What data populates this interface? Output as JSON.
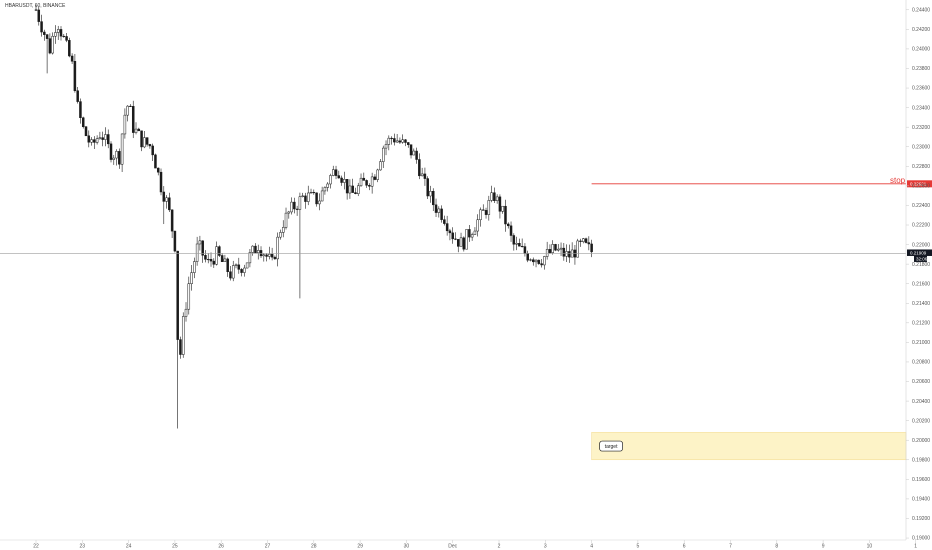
{
  "symbol_label": "HBARUSDT, 60, BINANCE",
  "colors": {
    "background": "#ffffff",
    "candle": "#1a1a1a",
    "stop_line": "#e53935",
    "price_line": "#9e9e9e",
    "target_zone": "#fdf3c7",
    "target_border": "#f2d98a",
    "axis": "#555555",
    "price_tag": "#131722"
  },
  "chart_data": {
    "type": "candlestick",
    "title": "",
    "y_range": [
      0.1898,
      0.245
    ],
    "y_ticks": [
      "0.24400",
      "0.24200",
      "0.24000",
      "0.23800",
      "0.23600",
      "0.23400",
      "0.23200",
      "0.23000",
      "0.22800",
      "0.22600",
      "0.22400",
      "0.22200",
      "0.22000",
      "0.21800",
      "0.21600",
      "0.21400",
      "0.21200",
      "0.21000",
      "0.20800",
      "0.20600",
      "0.20400",
      "0.20200",
      "0.20000",
      "0.19800",
      "0.19600",
      "0.19400",
      "0.19200",
      "0.19000"
    ],
    "y_tick_values": [
      0.244,
      0.242,
      0.24,
      0.238,
      0.236,
      0.234,
      0.232,
      0.23,
      0.228,
      0.226,
      0.224,
      0.222,
      0.22,
      0.218,
      0.216,
      0.214,
      0.212,
      0.21,
      0.208,
      0.206,
      0.204,
      0.202,
      0.2,
      0.198,
      0.196,
      0.194,
      0.192,
      0.19
    ],
    "x_ticks": [
      "22",
      "23",
      "24",
      "25",
      "26",
      "27",
      "28",
      "29",
      "30",
      "Dec",
      "2",
      "3",
      "4",
      "5",
      "6",
      "7",
      "8",
      "9",
      "10",
      "1"
    ],
    "x_tick_index": [
      0,
      1,
      2,
      3,
      4,
      5,
      6,
      7,
      8,
      9,
      10,
      11,
      12,
      13,
      14,
      15,
      16,
      17,
      18,
      19
    ],
    "candle_path": [
      [
        0,
        0.244
      ],
      [
        0.15,
        0.242
      ],
      [
        0.3,
        0.24
      ],
      [
        0.45,
        0.243
      ],
      [
        0.6,
        0.241
      ],
      [
        0.8,
        0.238
      ],
      [
        0.9,
        0.234
      ],
      [
        1.0,
        0.232
      ],
      [
        1.2,
        0.23
      ],
      [
        1.4,
        0.2315
      ],
      [
        1.6,
        0.2295
      ],
      [
        1.8,
        0.229
      ],
      [
        1.9,
        0.233
      ],
      [
        2.0,
        0.2345
      ],
      [
        2.1,
        0.232
      ],
      [
        2.3,
        0.2305
      ],
      [
        2.5,
        0.23
      ],
      [
        2.7,
        0.226
      ],
      [
        2.85,
        0.224
      ],
      [
        3.0,
        0.22
      ],
      [
        3.03,
        0.2175
      ],
      [
        3.08,
        0.206
      ],
      [
        3.15,
        0.211
      ],
      [
        3.3,
        0.216
      ],
      [
        3.5,
        0.22
      ],
      [
        3.7,
        0.218
      ],
      [
        3.9,
        0.219
      ],
      [
        4.2,
        0.217
      ],
      [
        4.5,
        0.218
      ],
      [
        4.8,
        0.22
      ],
      [
        5.1,
        0.218
      ],
      [
        5.3,
        0.222
      ],
      [
        5.5,
        0.2235
      ],
      [
        5.8,
        0.225
      ],
      [
        6.1,
        0.2245
      ],
      [
        6.3,
        0.2265
      ],
      [
        6.5,
        0.228
      ],
      [
        6.8,
        0.225
      ],
      [
        7.0,
        0.226
      ],
      [
        7.3,
        0.227
      ],
      [
        7.5,
        0.23
      ],
      [
        7.7,
        0.231
      ],
      [
        8.0,
        0.23
      ],
      [
        8.2,
        0.229
      ],
      [
        8.4,
        0.226
      ],
      [
        8.6,
        0.224
      ],
      [
        8.8,
        0.223
      ],
      [
        9.0,
        0.221
      ],
      [
        9.2,
        0.22
      ],
      [
        9.4,
        0.2215
      ],
      [
        9.7,
        0.2235
      ],
      [
        9.9,
        0.225
      ],
      [
        10.1,
        0.223
      ],
      [
        10.3,
        0.22
      ],
      [
        10.6,
        0.219
      ],
      [
        10.9,
        0.2185
      ],
      [
        11.2,
        0.2195
      ],
      [
        11.5,
        0.2188
      ],
      [
        11.8,
        0.22
      ],
      [
        12.0,
        0.2193
      ]
    ],
    "big_spikes": [
      {
        "x": 0.25,
        "low": 0.2375
      },
      {
        "x": 3.08,
        "low": 0.2012
      },
      {
        "x": 2.75,
        "low": 0.2221
      },
      {
        "x": 5.7,
        "low": 0.2145
      }
    ],
    "current_price": 0.21909,
    "current_price_label": "0.21909",
    "countdown_label": "32:06",
    "stop": {
      "label": "stop",
      "value": 0.22621,
      "value_label": "0.22621",
      "x_start": 12.0
    },
    "target": {
      "label": "target",
      "top": 0.2008,
      "bottom": 0.198,
      "x_start": 12.0
    }
  }
}
